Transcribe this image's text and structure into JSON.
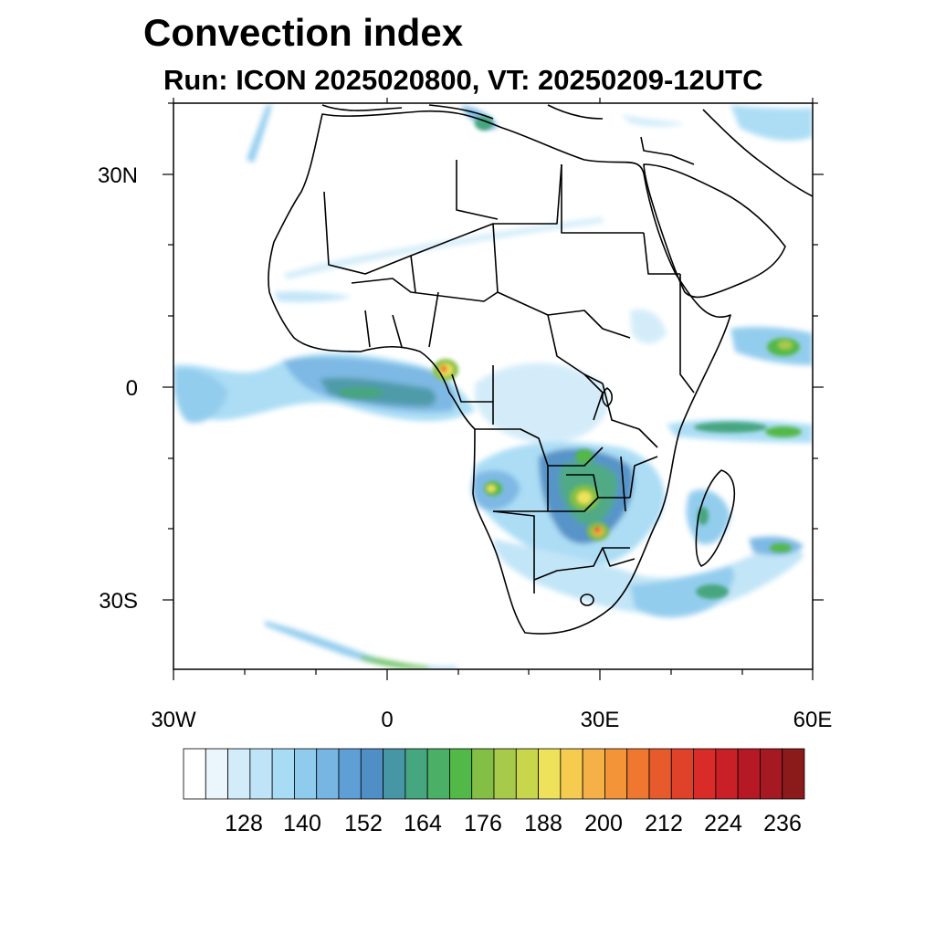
{
  "title": "Convection index",
  "subtitle": "Run: ICON 2025020800,  VT: 20250209-12UTC",
  "map": {
    "extent": {
      "lon_min": -30,
      "lon_max": 60,
      "lat_min": -40,
      "lat_max": 40
    },
    "projection": "equirectangular",
    "lat_ticks": [
      "30N",
      "0",
      "30S"
    ],
    "lon_ticks": [
      "30W",
      "0",
      "30E",
      "60E"
    ]
  },
  "colorbar": {
    "labels": [
      "128",
      "140",
      "152",
      "164",
      "176",
      "188",
      "200",
      "212",
      "224",
      "236"
    ],
    "colors": [
      "#ffffff",
      "#eaf6fc",
      "#d2ecf9",
      "#bfe4f7",
      "#a8dcf5",
      "#8ecbed",
      "#77b6e3",
      "#5e9fd6",
      "#4f8fc6",
      "#4796a6",
      "#46a680",
      "#4bb065",
      "#52b848",
      "#84bf45",
      "#a7ca4a",
      "#c8d64c",
      "#ede25a",
      "#f6cc50",
      "#f6b048",
      "#f49438",
      "#ef7730",
      "#e75a2b",
      "#e04129",
      "#d92b28",
      "#c91f26",
      "#b71924",
      "#a71922",
      "#8b1a1a"
    ]
  }
}
